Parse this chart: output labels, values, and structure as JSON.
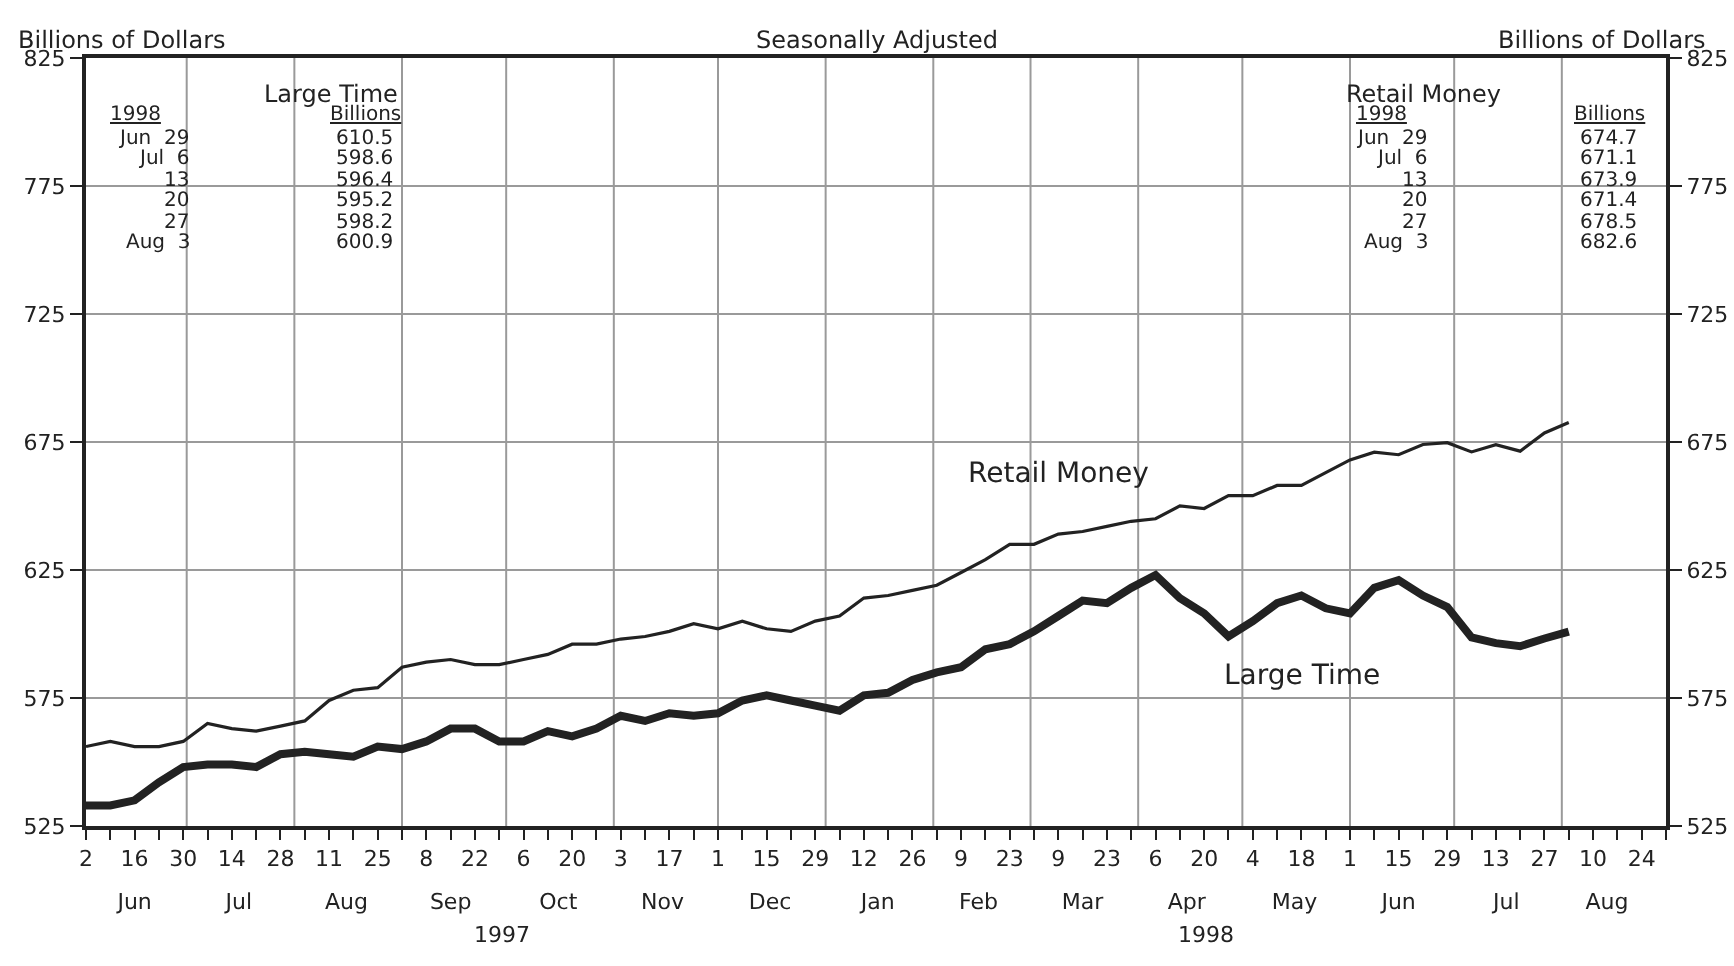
{
  "chart_data": {
    "type": "line",
    "title": "Seasonally Adjusted",
    "ylabel": "Billions of Dollars",
    "y2label": "Billions of Dollars",
    "x": [
      "1997-06-02",
      "1997-06-09",
      "1997-06-16",
      "1997-06-23",
      "1997-06-30",
      "1997-07-07",
      "1997-07-14",
      "1997-07-21",
      "1997-07-28",
      "1997-08-04",
      "1997-08-11",
      "1997-08-18",
      "1997-08-25",
      "1997-09-01",
      "1997-09-08",
      "1997-09-15",
      "1997-09-22",
      "1997-09-29",
      "1997-10-06",
      "1997-10-13",
      "1997-10-20",
      "1997-10-27",
      "1997-11-03",
      "1997-11-10",
      "1997-11-17",
      "1997-11-24",
      "1997-12-01",
      "1997-12-08",
      "1997-12-15",
      "1997-12-22",
      "1997-12-29",
      "1998-01-05",
      "1998-01-12",
      "1998-01-19",
      "1998-01-26",
      "1998-02-02",
      "1998-02-09",
      "1998-02-16",
      "1998-02-23",
      "1998-03-02",
      "1998-03-09",
      "1998-03-16",
      "1998-03-23",
      "1998-03-30",
      "1998-04-06",
      "1998-04-13",
      "1998-04-20",
      "1998-04-27",
      "1998-05-04",
      "1998-05-11",
      "1998-05-18",
      "1998-05-25",
      "1998-06-01",
      "1998-06-08",
      "1998-06-15",
      "1998-06-22",
      "1998-06-29",
      "1998-07-06",
      "1998-07-13",
      "1998-07-20",
      "1998-07-27",
      "1998-08-03"
    ],
    "series": [
      {
        "name": "Retail Money",
        "color": "#222222",
        "values": [
          556,
          558,
          556,
          556,
          558,
          565,
          563,
          562,
          564,
          566,
          574,
          578,
          579,
          587,
          589,
          590,
          588,
          588,
          590,
          592,
          596,
          596,
          598,
          599,
          601,
          604,
          602,
          605,
          602,
          601,
          605,
          607,
          614,
          615,
          617,
          619,
          624,
          629,
          635,
          635,
          639,
          640,
          642,
          644,
          645,
          650,
          649,
          654,
          654,
          658,
          658,
          663,
          668,
          671,
          670,
          674,
          674.7,
          671.1,
          673.9,
          671.4,
          678.5,
          682.6
        ]
      },
      {
        "name": "Large Time",
        "color": "#222222",
        "values": [
          533,
          533,
          535,
          542,
          548,
          549,
          549,
          548,
          553,
          554,
          553,
          552,
          556,
          555,
          558,
          563,
          563,
          558,
          558,
          562,
          560,
          563,
          568,
          566,
          569,
          568,
          569,
          574,
          576,
          574,
          572,
          570,
          576,
          577,
          582,
          585,
          587,
          594,
          596,
          601,
          607,
          613,
          612,
          618,
          623,
          614,
          608,
          599,
          605,
          612,
          615,
          610,
          608,
          618,
          621,
          615,
          610.5,
          598.6,
          596.4,
          595.2,
          598.2,
          600.9
        ]
      }
    ],
    "xlim": [
      "1997-06-02",
      "1998-08-31"
    ],
    "xticks": [
      {
        "value": "1997-06-02",
        "label": "2"
      },
      {
        "value": "1997-06-09",
        "label": null
      },
      {
        "value": "1997-06-16",
        "label": "16"
      },
      {
        "value": "1997-06-23",
        "label": null
      },
      {
        "value": "1997-06-30",
        "label": "30"
      },
      {
        "value": "1997-07-07",
        "label": null
      },
      {
        "value": "1997-07-14",
        "label": "14"
      },
      {
        "value": "1997-07-21",
        "label": null
      },
      {
        "value": "1997-07-28",
        "label": "28"
      },
      {
        "value": "1997-08-04",
        "label": null
      },
      {
        "value": "1997-08-11",
        "label": "11"
      },
      {
        "value": "1997-08-18",
        "label": null
      },
      {
        "value": "1997-08-25",
        "label": "25"
      },
      {
        "value": "1997-09-01",
        "label": null
      },
      {
        "value": "1997-09-08",
        "label": "8"
      },
      {
        "value": "1997-09-15",
        "label": null
      },
      {
        "value": "1997-09-22",
        "label": "22"
      },
      {
        "value": "1997-09-29",
        "label": null
      },
      {
        "value": "1997-10-06",
        "label": "6"
      },
      {
        "value": "1997-10-13",
        "label": null
      },
      {
        "value": "1997-10-20",
        "label": "20"
      },
      {
        "value": "1997-10-27",
        "label": null
      },
      {
        "value": "1997-11-03",
        "label": "3"
      },
      {
        "value": "1997-11-10",
        "label": null
      },
      {
        "value": "1997-11-17",
        "label": "17"
      },
      {
        "value": "1997-11-24",
        "label": null
      },
      {
        "value": "1997-12-01",
        "label": "1"
      },
      {
        "value": "1997-12-08",
        "label": null
      },
      {
        "value": "1997-12-15",
        "label": "15"
      },
      {
        "value": "1997-12-22",
        "label": null
      },
      {
        "value": "1997-12-29",
        "label": "29"
      },
      {
        "value": "1998-01-05",
        "label": null
      },
      {
        "value": "1998-01-12",
        "label": "12"
      },
      {
        "value": "1998-01-19",
        "label": null
      },
      {
        "value": "1998-01-26",
        "label": "26"
      },
      {
        "value": "1998-02-02",
        "label": null
      },
      {
        "value": "1998-02-09",
        "label": "9"
      },
      {
        "value": "1998-02-16",
        "label": null
      },
      {
        "value": "1998-02-23",
        "label": "23"
      },
      {
        "value": "1998-03-02",
        "label": null
      },
      {
        "value": "1998-03-09",
        "label": "9"
      },
      {
        "value": "1998-03-16",
        "label": null
      },
      {
        "value": "1998-03-23",
        "label": "23"
      },
      {
        "value": "1998-03-30",
        "label": null
      },
      {
        "value": "1998-04-06",
        "label": "6"
      },
      {
        "value": "1998-04-13",
        "label": null
      },
      {
        "value": "1998-04-20",
        "label": "20"
      },
      {
        "value": "1998-04-27",
        "label": null
      },
      {
        "value": "1998-05-04",
        "label": "4"
      },
      {
        "value": "1998-05-11",
        "label": null
      },
      {
        "value": "1998-05-18",
        "label": "18"
      },
      {
        "value": "1998-05-25",
        "label": null
      },
      {
        "value": "1998-06-01",
        "label": "1"
      },
      {
        "value": "1998-06-08",
        "label": null
      },
      {
        "value": "1998-06-15",
        "label": "15"
      },
      {
        "value": "1998-06-22",
        "label": null
      },
      {
        "value": "1998-06-29",
        "label": "29"
      },
      {
        "value": "1998-07-06",
        "label": null
      },
      {
        "value": "1998-07-13",
        "label": "13"
      },
      {
        "value": "1998-07-20",
        "label": null
      },
      {
        "value": "1998-07-27",
        "label": "27"
      },
      {
        "value": "1998-08-03",
        "label": null
      },
      {
        "value": "1998-08-10",
        "label": "10"
      },
      {
        "value": "1998-08-17",
        "label": null
      },
      {
        "value": "1998-08-24",
        "label": "24"
      },
      {
        "value": "1998-08-31",
        "label": null
      }
    ],
    "x2lim": [
      "1997-06-02",
      "1998-08-31"
    ],
    "x2ticks": [
      {
        "value": "1997-06-16",
        "label": "Jun"
      },
      {
        "value": "1997-07-16",
        "label": "Jul"
      },
      {
        "value": "1997-08-16",
        "label": "Aug"
      },
      {
        "value": "1997-09-15",
        "label": "Sep"
      },
      {
        "value": "1997-10-16",
        "label": "Oct"
      },
      {
        "value": "1997-11-15",
        "label": "Nov"
      },
      {
        "value": "1997-12-16",
        "label": "Dec"
      },
      {
        "value": "1998-01-16",
        "label": "Jan"
      },
      {
        "value": "1998-02-14",
        "label": "Feb"
      },
      {
        "value": "1998-03-16",
        "label": "Mar"
      },
      {
        "value": "1998-04-15",
        "label": "Apr"
      },
      {
        "value": "1998-05-16",
        "label": "May"
      },
      {
        "value": "1998-06-15",
        "label": "Jun"
      },
      {
        "value": "1998-07-16",
        "label": "Jul"
      },
      {
        "value": "1998-08-14",
        "label": "Aug"
      },
      {
        "value": "1997-07-01",
        "label": null
      },
      {
        "value": "1997-08-01",
        "label": null
      },
      {
        "value": "1997-09-01",
        "label": null
      },
      {
        "value": "1997-10-01",
        "label": null
      },
      {
        "value": "1997-11-01",
        "label": null
      },
      {
        "value": "1997-12-01",
        "label": null
      },
      {
        "value": "1998-01-01",
        "label": null
      },
      {
        "value": "1998-02-01",
        "label": null
      },
      {
        "value": "1998-03-01",
        "label": null
      },
      {
        "value": "1998-04-01",
        "label": null
      },
      {
        "value": "1998-05-01",
        "label": null
      },
      {
        "value": "1998-06-01",
        "label": null
      },
      {
        "value": "1998-07-01",
        "label": null
      },
      {
        "value": "1998-08-01",
        "label": null
      }
    ],
    "ylim": [
      525,
      825
    ],
    "yticks": [
      525,
      575,
      625,
      675,
      725,
      775,
      825
    ],
    "y2lim": [
      525,
      825
    ],
    "y2ticks": [
      525,
      575,
      625,
      675,
      725,
      775,
      825
    ],
    "grid": true,
    "legend": false,
    "marker": "none",
    "line_style": "solid",
    "annotations": [
      "Large Time",
      "1998",
      "Billions",
      "Jun  29",
      "Jul  6",
      "13",
      "20",
      "27",
      "Aug  3",
      "610.5",
      "598.6",
      "596.4",
      "595.2",
      "598.2",
      "600.9",
      "Retail Money",
      "1998",
      "Billions",
      "Jun  29",
      "Jul  6",
      "13",
      "20",
      "27",
      "Aug  3",
      "674.7",
      "671.1",
      "673.9",
      "671.4",
      "678.5",
      "682.6",
      "1997",
      "1998"
    ]
  }
}
